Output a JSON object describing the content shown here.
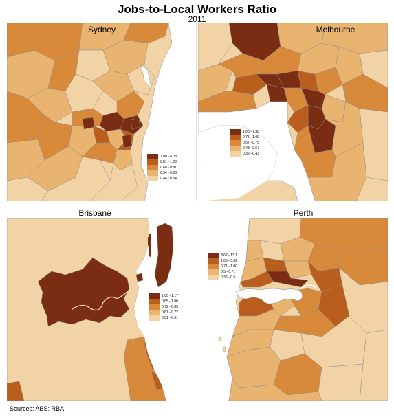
{
  "title": "Jobs-to-Local Workers Ratio",
  "subtitle": "2011",
  "source": "Sources: ABS; RBA",
  "colors": {
    "c1": "#f2d3a6",
    "c2": "#e9b370",
    "c3": "#d9893a",
    "c4": "#b95e1d",
    "c5": "#7a2d12",
    "water": "#ffffff",
    "border": "#8c8c8c"
  },
  "panels": {
    "sydney": {
      "name": "Sydney",
      "legend": [
        "1.00 - 4.08",
        "0.81 - 1.00",
        "0.68 - 0.81",
        "0.54 - 0.68",
        "0.44 - 0.54"
      ]
    },
    "melbourne": {
      "name": "Melbourne",
      "legend": [
        "1.00 - 7.38",
        "0.75 - 1.00",
        "0.57 - 0.75",
        "0.43 - 0.57",
        "0.32 - 0.43"
      ]
    },
    "brisbane": {
      "name": "Brisbane",
      "legend": [
        "1.00 - 1.17",
        "0.85 - 1.00",
        "0.72 - 0.85",
        "0.61 - 0.72",
        "0.51 - 0.61"
      ]
    },
    "perth": {
      "name": "Perth",
      "legend": [
        "3.62 - 13.1",
        "1.00 - 3.62",
        "0.71 - 1.00",
        "0.5 - 0.71",
        "0.36 - 0.5"
      ]
    }
  }
}
